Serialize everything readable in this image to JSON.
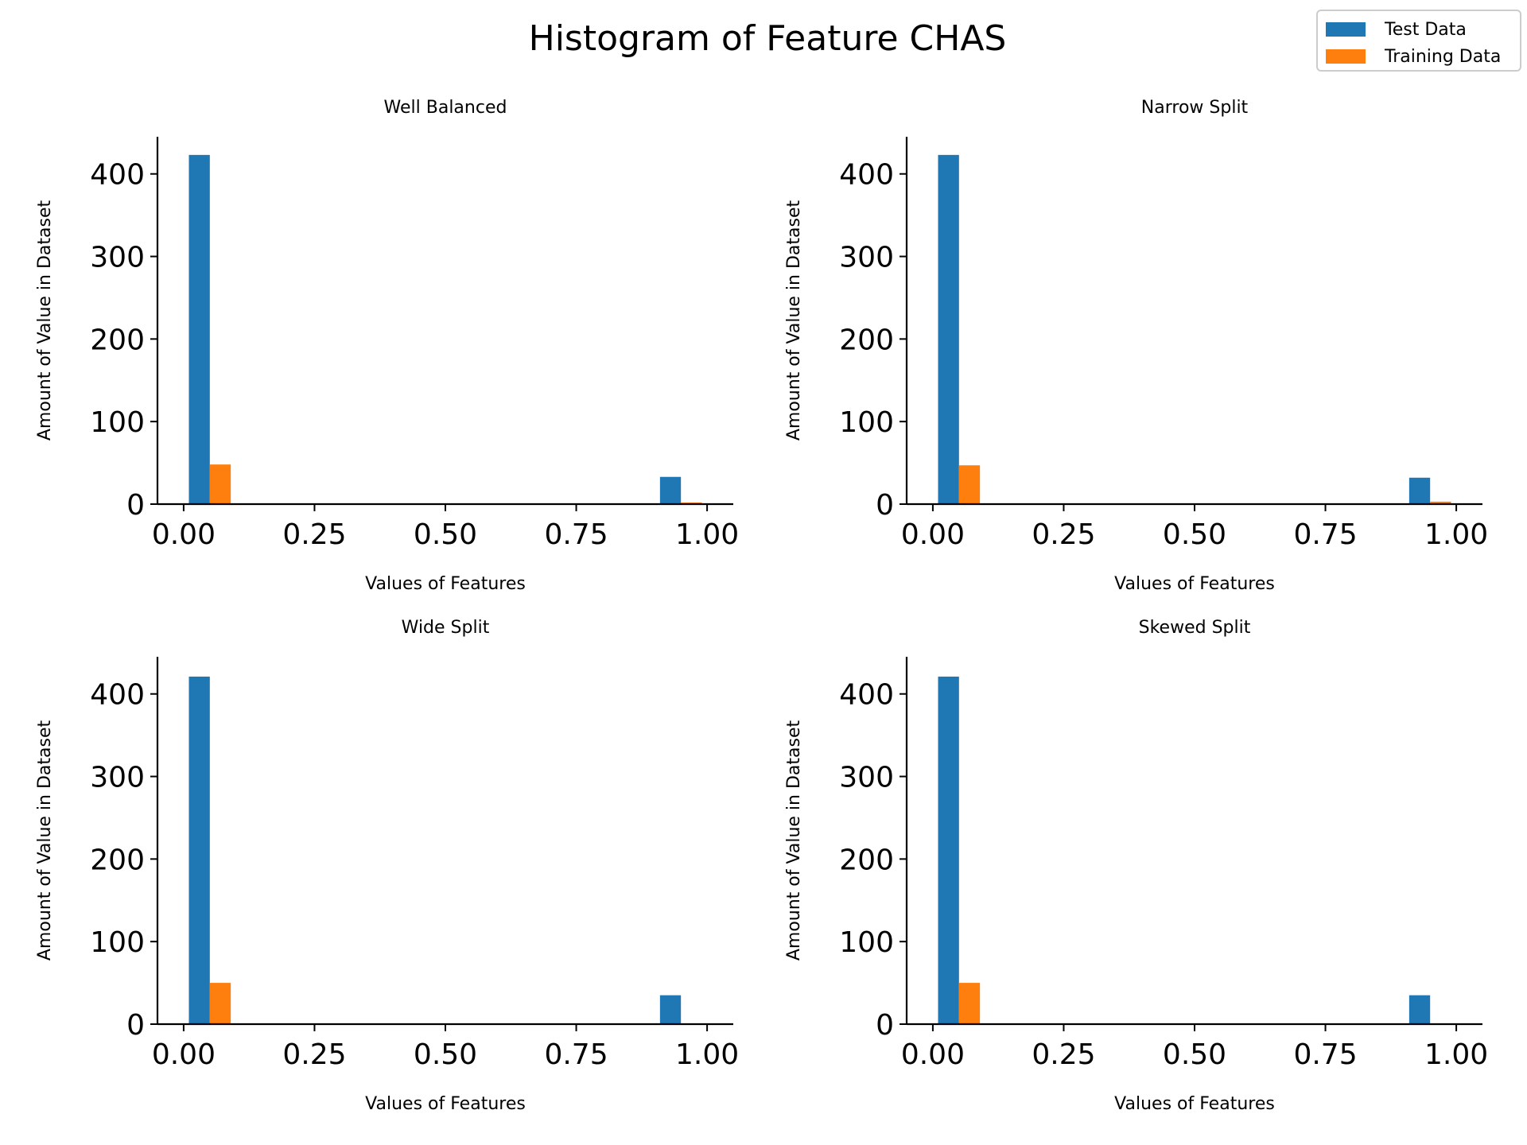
{
  "figure": {
    "title": "Histogram of Feature CHAS"
  },
  "legend": {
    "items": [
      {
        "label": "Test Data",
        "color": "#1f77b4"
      },
      {
        "label": "Training Data",
        "color": "#ff7f0e"
      }
    ]
  },
  "chart_data": [
    {
      "type": "bar",
      "title": "Well Balanced",
      "xlabel": "Values of Features",
      "ylabel": "Amount of Value in Dataset",
      "xlim": [
        -0.05,
        1.05
      ],
      "ylim": [
        0,
        445
      ],
      "xticks": [
        "0.00",
        "0.25",
        "0.50",
        "0.75",
        "1.00"
      ],
      "yticks": [
        "0",
        "100",
        "200",
        "300",
        "400"
      ],
      "grid": false,
      "series": [
        {
          "name": "Test Data",
          "color": "#1f77b4",
          "bars": [
            {
              "x0": 0.01,
              "x1": 0.05,
              "value": 423
            },
            {
              "x0": 0.91,
              "x1": 0.95,
              "value": 33
            }
          ]
        },
        {
          "name": "Training Data",
          "color": "#ff7f0e",
          "bars": [
            {
              "x0": 0.05,
              "x1": 0.09,
              "value": 48
            },
            {
              "x0": 0.95,
              "x1": 0.99,
              "value": 2
            }
          ]
        }
      ]
    },
    {
      "type": "bar",
      "title": "Narrow Split",
      "xlabel": "Values of Features",
      "ylabel": "Amount of Value in Dataset",
      "xlim": [
        -0.05,
        1.05
      ],
      "ylim": [
        0,
        445
      ],
      "xticks": [
        "0.00",
        "0.25",
        "0.50",
        "0.75",
        "1.00"
      ],
      "yticks": [
        "0",
        "100",
        "200",
        "300",
        "400"
      ],
      "grid": false,
      "series": [
        {
          "name": "Test Data",
          "color": "#1f77b4",
          "bars": [
            {
              "x0": 0.01,
              "x1": 0.05,
              "value": 423
            },
            {
              "x0": 0.91,
              "x1": 0.95,
              "value": 32
            }
          ]
        },
        {
          "name": "Training Data",
          "color": "#ff7f0e",
          "bars": [
            {
              "x0": 0.05,
              "x1": 0.09,
              "value": 47
            },
            {
              "x0": 0.95,
              "x1": 0.99,
              "value": 3
            }
          ]
        }
      ]
    },
    {
      "type": "bar",
      "title": "Wide Split",
      "xlabel": "Values of Features",
      "ylabel": "Amount of Value in Dataset",
      "xlim": [
        -0.05,
        1.05
      ],
      "ylim": [
        0,
        445
      ],
      "xticks": [
        "0.00",
        "0.25",
        "0.50",
        "0.75",
        "1.00"
      ],
      "yticks": [
        "0",
        "100",
        "200",
        "300",
        "400"
      ],
      "grid": false,
      "series": [
        {
          "name": "Test Data",
          "color": "#1f77b4",
          "bars": [
            {
              "x0": 0.01,
              "x1": 0.05,
              "value": 421
            },
            {
              "x0": 0.91,
              "x1": 0.95,
              "value": 35
            }
          ]
        },
        {
          "name": "Training Data",
          "color": "#ff7f0e",
          "bars": [
            {
              "x0": 0.05,
              "x1": 0.09,
              "value": 50
            },
            {
              "x0": 0.95,
              "x1": 0.99,
              "value": 0
            }
          ]
        }
      ]
    },
    {
      "type": "bar",
      "title": "Skewed Split",
      "xlabel": "Values of Features",
      "ylabel": "Amount of Value in Dataset",
      "xlim": [
        -0.05,
        1.05
      ],
      "ylim": [
        0,
        445
      ],
      "xticks": [
        "0.00",
        "0.25",
        "0.50",
        "0.75",
        "1.00"
      ],
      "yticks": [
        "0",
        "100",
        "200",
        "300",
        "400"
      ],
      "grid": false,
      "series": [
        {
          "name": "Test Data",
          "color": "#1f77b4",
          "bars": [
            {
              "x0": 0.01,
              "x1": 0.05,
              "value": 421
            },
            {
              "x0": 0.91,
              "x1": 0.95,
              "value": 35
            }
          ]
        },
        {
          "name": "Training Data",
          "color": "#ff7f0e",
          "bars": [
            {
              "x0": 0.05,
              "x1": 0.09,
              "value": 50
            },
            {
              "x0": 0.95,
              "x1": 0.99,
              "value": 0
            }
          ]
        }
      ]
    }
  ]
}
